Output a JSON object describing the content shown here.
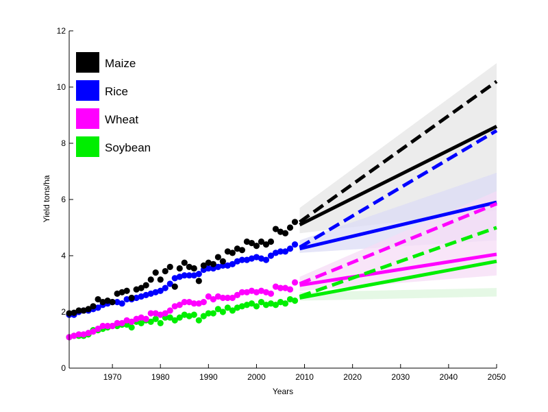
{
  "chart_data": {
    "type": "scatter",
    "xlabel": "Years",
    "ylabel": "Yield tons/ha",
    "xlim": [
      1961,
      2050
    ],
    "ylim": [
      0,
      12
    ],
    "x_ticks": [
      1970,
      1980,
      1990,
      2000,
      2010,
      2020,
      2030,
      2040,
      2050
    ],
    "y_ticks": [
      0,
      2,
      4,
      6,
      8,
      10,
      12
    ],
    "grid": false,
    "legend_position": "top-left",
    "series": [
      {
        "name": "Maize",
        "color": "#000000",
        "band_color": "#e6e6e6",
        "observed": [
          [
            1961,
            1.95
          ],
          [
            1962,
            1.97
          ],
          [
            1963,
            2.05
          ],
          [
            1964,
            2.05
          ],
          [
            1965,
            2.1
          ],
          [
            1966,
            2.2
          ],
          [
            1967,
            2.45
          ],
          [
            1968,
            2.35
          ],
          [
            1969,
            2.4
          ],
          [
            1970,
            2.35
          ],
          [
            1971,
            2.65
          ],
          [
            1972,
            2.7
          ],
          [
            1973,
            2.75
          ],
          [
            1974,
            2.5
          ],
          [
            1975,
            2.8
          ],
          [
            1976,
            2.85
          ],
          [
            1977,
            2.95
          ],
          [
            1978,
            3.15
          ],
          [
            1979,
            3.4
          ],
          [
            1980,
            3.15
          ],
          [
            1981,
            3.45
          ],
          [
            1982,
            3.6
          ],
          [
            1983,
            2.9
          ],
          [
            1984,
            3.55
          ],
          [
            1985,
            3.75
          ],
          [
            1986,
            3.6
          ],
          [
            1987,
            3.55
          ],
          [
            1988,
            3.1
          ],
          [
            1989,
            3.65
          ],
          [
            1990,
            3.75
          ],
          [
            1991,
            3.7
          ],
          [
            1992,
            3.95
          ],
          [
            1993,
            3.8
          ],
          [
            1994,
            4.15
          ],
          [
            1995,
            4.1
          ],
          [
            1996,
            4.25
          ],
          [
            1997,
            4.2
          ],
          [
            1998,
            4.5
          ],
          [
            1999,
            4.45
          ],
          [
            2000,
            4.35
          ],
          [
            2001,
            4.5
          ],
          [
            2002,
            4.4
          ],
          [
            2003,
            4.5
          ],
          [
            2004,
            4.95
          ],
          [
            2005,
            4.85
          ],
          [
            2006,
            4.8
          ],
          [
            2007,
            5.0
          ],
          [
            2008,
            5.2
          ]
        ],
        "projection_solid": [
          [
            2009,
            5.1
          ],
          [
            2050,
            8.6
          ]
        ],
        "projection_dashed": [
          [
            2009,
            5.2
          ],
          [
            2050,
            10.2
          ]
        ],
        "band": [
          [
            2009,
            4.8,
            5.7
          ],
          [
            2050,
            5.6,
            10.85
          ]
        ]
      },
      {
        "name": "Rice",
        "color": "#0000ff",
        "band_color": "#dcdcf6",
        "observed": [
          [
            1961,
            1.9
          ],
          [
            1962,
            1.9
          ],
          [
            1963,
            2.0
          ],
          [
            1964,
            2.05
          ],
          [
            1965,
            2.05
          ],
          [
            1966,
            2.1
          ],
          [
            1967,
            2.15
          ],
          [
            1968,
            2.25
          ],
          [
            1969,
            2.3
          ],
          [
            1970,
            2.35
          ],
          [
            1971,
            2.35
          ],
          [
            1972,
            2.3
          ],
          [
            1973,
            2.45
          ],
          [
            1974,
            2.45
          ],
          [
            1975,
            2.5
          ],
          [
            1976,
            2.55
          ],
          [
            1977,
            2.6
          ],
          [
            1978,
            2.65
          ],
          [
            1979,
            2.7
          ],
          [
            1980,
            2.75
          ],
          [
            1981,
            2.85
          ],
          [
            1982,
            3.0
          ],
          [
            1983,
            3.2
          ],
          [
            1984,
            3.25
          ],
          [
            1985,
            3.3
          ],
          [
            1986,
            3.3
          ],
          [
            1987,
            3.3
          ],
          [
            1988,
            3.35
          ],
          [
            1989,
            3.5
          ],
          [
            1990,
            3.55
          ],
          [
            1991,
            3.55
          ],
          [
            1992,
            3.6
          ],
          [
            1993,
            3.65
          ],
          [
            1994,
            3.65
          ],
          [
            1995,
            3.7
          ],
          [
            1996,
            3.8
          ],
          [
            1997,
            3.85
          ],
          [
            1998,
            3.85
          ],
          [
            1999,
            3.9
          ],
          [
            2000,
            3.95
          ],
          [
            2001,
            3.9
          ],
          [
            2002,
            3.85
          ],
          [
            2003,
            4.0
          ],
          [
            2004,
            4.1
          ],
          [
            2005,
            4.15
          ],
          [
            2006,
            4.15
          ],
          [
            2007,
            4.25
          ],
          [
            2008,
            4.4
          ]
        ],
        "projection_solid": [
          [
            2009,
            4.25
          ],
          [
            2050,
            5.9
          ]
        ],
        "projection_dashed": [
          [
            2009,
            4.3
          ],
          [
            2050,
            8.45
          ]
        ],
        "band": [
          [
            2009,
            4.1,
            4.55
          ],
          [
            2050,
            4.55,
            6.95
          ]
        ]
      },
      {
        "name": "Wheat",
        "color": "#ff00ff",
        "band_color": "#f6dcf6",
        "observed": [
          [
            1961,
            1.1
          ],
          [
            1962,
            1.15
          ],
          [
            1963,
            1.2
          ],
          [
            1964,
            1.2
          ],
          [
            1965,
            1.25
          ],
          [
            1966,
            1.3
          ],
          [
            1967,
            1.4
          ],
          [
            1968,
            1.5
          ],
          [
            1969,
            1.5
          ],
          [
            1970,
            1.5
          ],
          [
            1971,
            1.6
          ],
          [
            1972,
            1.6
          ],
          [
            1973,
            1.7
          ],
          [
            1974,
            1.65
          ],
          [
            1975,
            1.75
          ],
          [
            1976,
            1.8
          ],
          [
            1977,
            1.75
          ],
          [
            1978,
            1.95
          ],
          [
            1979,
            1.95
          ],
          [
            1980,
            1.9
          ],
          [
            1981,
            1.95
          ],
          [
            1982,
            2.05
          ],
          [
            1983,
            2.2
          ],
          [
            1984,
            2.25
          ],
          [
            1985,
            2.35
          ],
          [
            1986,
            2.35
          ],
          [
            1987,
            2.3
          ],
          [
            1988,
            2.3
          ],
          [
            1989,
            2.35
          ],
          [
            1990,
            2.55
          ],
          [
            1991,
            2.45
          ],
          [
            1992,
            2.55
          ],
          [
            1993,
            2.5
          ],
          [
            1994,
            2.5
          ],
          [
            1995,
            2.5
          ],
          [
            1996,
            2.6
          ],
          [
            1997,
            2.7
          ],
          [
            1998,
            2.7
          ],
          [
            1999,
            2.75
          ],
          [
            2000,
            2.7
          ],
          [
            2001,
            2.75
          ],
          [
            2002,
            2.7
          ],
          [
            2003,
            2.65
          ],
          [
            2004,
            2.9
          ],
          [
            2005,
            2.85
          ],
          [
            2006,
            2.85
          ],
          [
            2007,
            2.8
          ],
          [
            2008,
            3.05
          ]
        ],
        "projection_solid": [
          [
            2009,
            2.95
          ],
          [
            2050,
            4.05
          ]
        ],
        "projection_dashed": [
          [
            2009,
            3.0
          ],
          [
            2050,
            5.85
          ]
        ],
        "band": [
          [
            2009,
            2.75,
            3.25
          ],
          [
            2050,
            3.3,
            6.3
          ]
        ]
      },
      {
        "name": "Soybean",
        "color": "#00ee00",
        "band_color": "#dcf6dc",
        "observed": [
          [
            1961,
            1.1
          ],
          [
            1962,
            1.15
          ],
          [
            1963,
            1.15
          ],
          [
            1964,
            1.15
          ],
          [
            1965,
            1.2
          ],
          [
            1966,
            1.35
          ],
          [
            1967,
            1.35
          ],
          [
            1968,
            1.4
          ],
          [
            1969,
            1.45
          ],
          [
            1970,
            1.5
          ],
          [
            1971,
            1.5
          ],
          [
            1972,
            1.55
          ],
          [
            1973,
            1.55
          ],
          [
            1974,
            1.45
          ],
          [
            1975,
            1.65
          ],
          [
            1976,
            1.6
          ],
          [
            1977,
            1.7
          ],
          [
            1978,
            1.65
          ],
          [
            1979,
            1.75
          ],
          [
            1980,
            1.6
          ],
          [
            1981,
            1.8
          ],
          [
            1982,
            1.8
          ],
          [
            1983,
            1.7
          ],
          [
            1984,
            1.8
          ],
          [
            1985,
            1.9
          ],
          [
            1986,
            1.85
          ],
          [
            1987,
            1.9
          ],
          [
            1988,
            1.7
          ],
          [
            1989,
            1.85
          ],
          [
            1990,
            1.95
          ],
          [
            1991,
            1.95
          ],
          [
            1992,
            2.1
          ],
          [
            1993,
            2.0
          ],
          [
            1994,
            2.15
          ],
          [
            1995,
            2.05
          ],
          [
            1996,
            2.15
          ],
          [
            1997,
            2.2
          ],
          [
            1998,
            2.25
          ],
          [
            1999,
            2.3
          ],
          [
            2000,
            2.2
          ],
          [
            2001,
            2.35
          ],
          [
            2002,
            2.25
          ],
          [
            2003,
            2.3
          ],
          [
            2004,
            2.25
          ],
          [
            2005,
            2.35
          ],
          [
            2006,
            2.3
          ],
          [
            2007,
            2.45
          ],
          [
            2008,
            2.4
          ]
        ],
        "projection_solid": [
          [
            2009,
            2.5
          ],
          [
            2050,
            3.8
          ]
        ],
        "projection_dashed": [
          [
            2009,
            2.55
          ],
          [
            2050,
            5.0
          ]
        ],
        "band": [
          [
            2009,
            2.4,
            2.7
          ],
          [
            2050,
            2.55,
            2.85
          ]
        ]
      }
    ]
  }
}
